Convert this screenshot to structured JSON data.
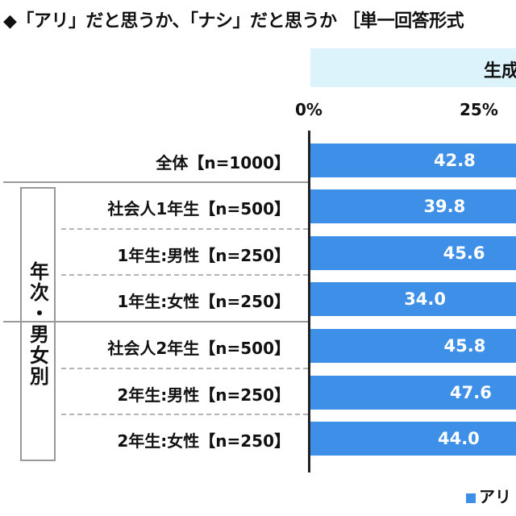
{
  "title": "◆「アリ」だと思うか、「ナシ」だと思うか ［単一回答形式",
  "header_label": "生成",
  "group_label": "年次・男女別",
  "legend_label": "アリ",
  "colors": {
    "bar": "#3d8fe8",
    "header_band": "#dcf3fb"
  },
  "chart_data": {
    "type": "bar",
    "orientation": "horizontal",
    "categories": [
      "全体【n=1000】",
      "社会人1年生【n=500】",
      "1年生:男性【n=250】",
      "1年生:女性【n=250】",
      "社会人2年生【n=500】",
      "2年生:男性【n=250】",
      "2年生:女性【n=250】"
    ],
    "values": [
      42.8,
      39.8,
      45.6,
      34.0,
      45.8,
      47.6,
      44.0
    ],
    "value_labels": [
      "42.8",
      "39.8",
      "45.6",
      "34.0",
      "45.8",
      "47.6",
      "44.0"
    ],
    "xticks": [
      "0%",
      "25%"
    ],
    "xlim": [
      0,
      100
    ]
  }
}
